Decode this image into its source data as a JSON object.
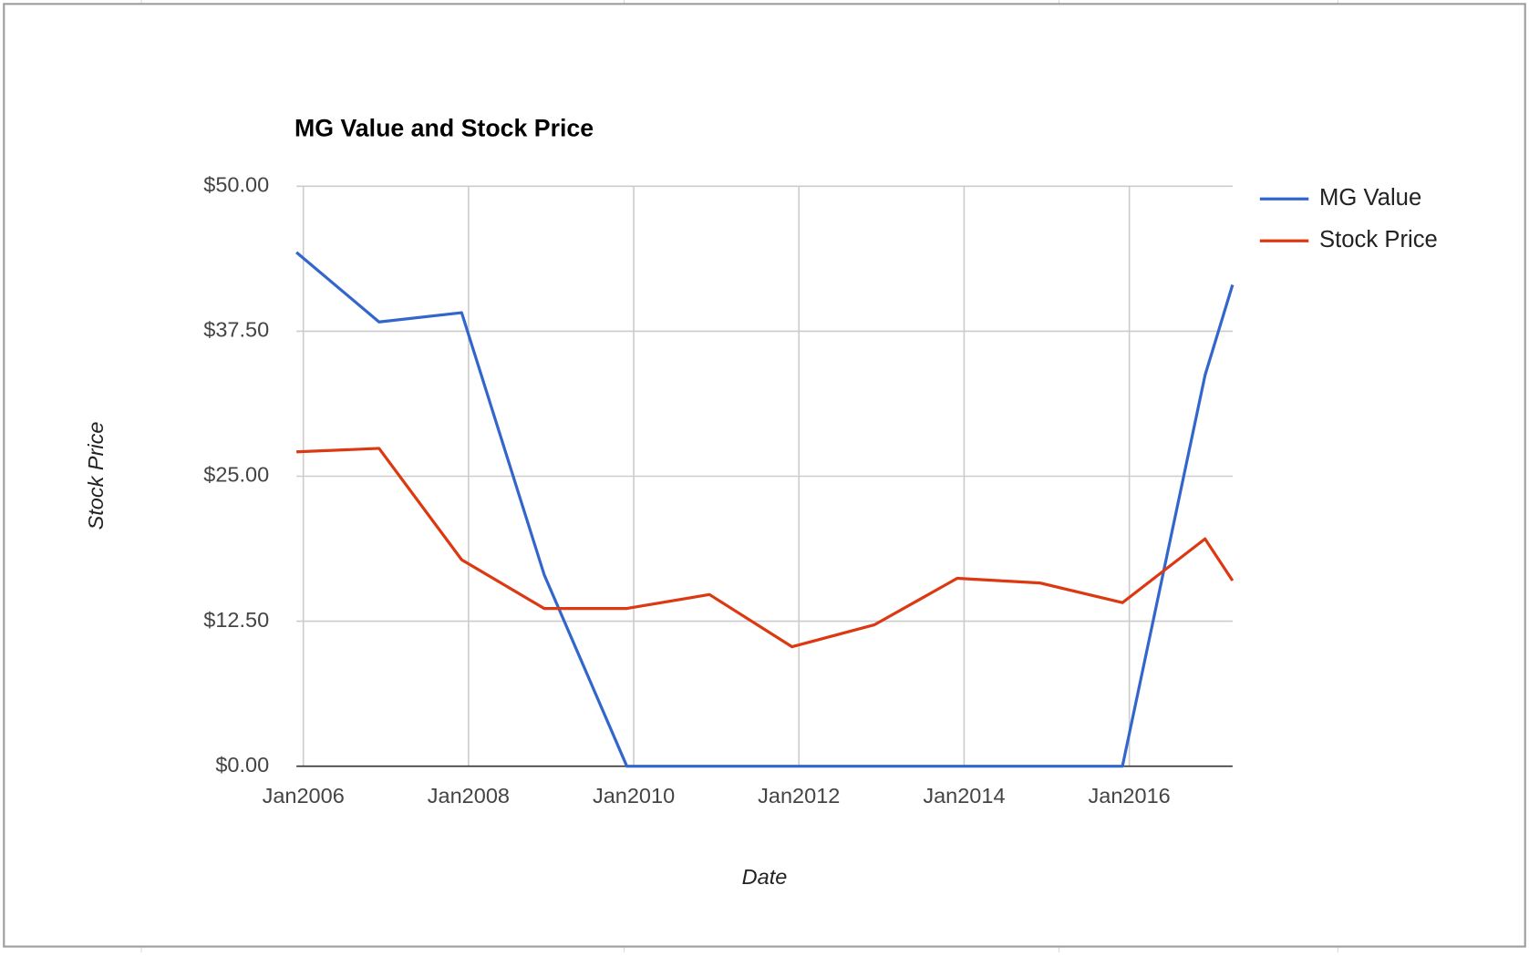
{
  "chart_data": {
    "type": "line",
    "title": "MG Value and Stock Price",
    "x_label": "Date",
    "y_label": "Stock Price",
    "x": [
      "2005-12",
      "2006-12",
      "2007-12",
      "2008-12",
      "2009-12",
      "2010-12",
      "2011-12",
      "2012-12",
      "2013-12",
      "2014-12",
      "2015-12",
      "2016-12",
      "2017-04"
    ],
    "series": [
      {
        "name": "MG Value",
        "color": "#3366cc",
        "values": [
          44.3,
          38.3,
          39.1,
          16.5,
          0,
          0,
          0,
          0,
          0,
          0,
          0,
          33.7,
          41.5
        ]
      },
      {
        "name": "Stock Price",
        "color": "#dc3912",
        "values": [
          27.1,
          27.4,
          17.8,
          13.6,
          13.6,
          14.8,
          10.3,
          12.2,
          16.2,
          15.8,
          14.1,
          19.6,
          16.0
        ]
      }
    ],
    "xlim": [
      "2005-12",
      "2017-04"
    ],
    "xticks": [
      {
        "value": "2006-01",
        "label": "Jan2006"
      },
      {
        "value": "2008-01",
        "label": "Jan2008"
      },
      {
        "value": "2010-01",
        "label": "Jan2010"
      },
      {
        "value": "2012-01",
        "label": "Jan2012"
      },
      {
        "value": "2014-01",
        "label": "Jan2014"
      },
      {
        "value": "2016-01",
        "label": "Jan2016"
      }
    ],
    "ylim": [
      0,
      50
    ],
    "yticks": [
      {
        "value": 0,
        "label": "$0.00"
      },
      {
        "value": 12.5,
        "label": "$12.50"
      },
      {
        "value": 25,
        "label": "$25.00"
      },
      {
        "value": 37.5,
        "label": "$37.50"
      },
      {
        "value": 50,
        "label": "$50.00"
      }
    ],
    "grid": true,
    "legend": "right"
  }
}
